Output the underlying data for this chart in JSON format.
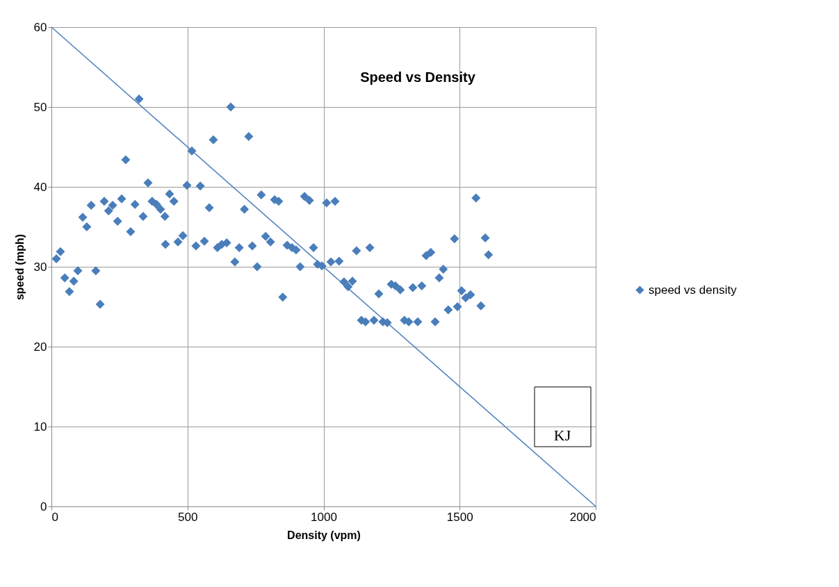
{
  "chart_data": {
    "type": "scatter",
    "title": "Speed vs Density",
    "xlabel": "Density (vpm)",
    "ylabel": "speed (mph)",
    "xlim": [
      0,
      2000
    ],
    "ylim": [
      0,
      60
    ],
    "xticks": [
      0,
      500,
      1000,
      1500,
      2000
    ],
    "yticks": [
      0,
      10,
      20,
      30,
      40,
      50,
      60
    ],
    "grid": true,
    "legend": "right",
    "marker": "diamond",
    "annotations": [
      "KJ"
    ],
    "series": [
      {
        "name": "speed vs density",
        "color": "#4a7ebb",
        "x": [
          18,
          33,
          49,
          66,
          82,
          97,
          115,
          130,
          146,
          163,
          179,
          194,
          210,
          225,
          243,
          258,
          273,
          291,
          307,
          322,
          337,
          355,
          370,
          386,
          401,
          417,
          419,
          434,
          450,
          465,
          483,
          498,
          516,
          531,
          547,
          562,
          580,
          595,
          610,
          626,
          644,
          659,
          674,
          690,
          709,
          725,
          738,
          756,
          771,
          787,
          805,
          820,
          835,
          850,
          866,
          884,
          899,
          914,
          930,
          948,
          963,
          978,
          994,
          1011,
          1027,
          1042,
          1057,
          1075,
          1090,
          1106,
          1121,
          1139,
          1154,
          1170,
          1185,
          1203,
          1218,
          1234,
          1249,
          1264,
          1282,
          1297,
          1313,
          1328,
          1346,
          1361,
          1377,
          1394,
          1410,
          1425,
          1440,
          1458,
          1481,
          1492,
          1507,
          1522,
          1540,
          1560,
          1578,
          1594,
          1606
        ],
        "values": [
          31.0,
          31.9,
          28.6,
          26.9,
          28.2,
          29.5,
          36.2,
          35.0,
          37.7,
          29.5,
          25.3,
          38.2,
          37.0,
          37.7,
          35.7,
          38.5,
          43.4,
          34.4,
          37.8,
          51.0,
          36.3,
          40.5,
          38.2,
          37.8,
          37.2,
          36.3,
          32.8,
          39.1,
          38.2,
          33.1,
          33.9,
          40.2,
          44.5,
          32.6,
          40.1,
          33.2,
          37.4,
          45.9,
          32.4,
          32.8,
          33.0,
          50.0,
          30.6,
          32.4,
          37.2,
          46.3,
          32.6,
          30.0,
          39.0,
          33.8,
          33.1,
          38.4,
          38.2,
          26.2,
          32.7,
          32.4,
          32.1,
          30.0,
          38.8,
          38.3,
          32.4,
          30.3,
          30.1,
          38.0,
          30.6,
          38.2,
          30.7,
          28.1,
          27.5,
          28.2,
          32.0,
          23.3,
          23.1,
          32.4,
          23.3,
          26.6,
          23.1,
          23.0,
          27.8,
          27.6,
          27.1,
          23.3,
          23.1,
          27.4,
          23.1,
          27.6,
          31.4,
          31.8,
          23.1,
          28.6,
          29.7,
          24.6,
          33.5,
          25.0,
          27.0,
          26.1,
          26.5,
          38.6,
          25.1,
          33.6,
          31.5
        ]
      },
      {
        "color": "#4a7ebb",
        "type": "line",
        "marker": "none",
        "x": [
          0,
          2000
        ],
        "values": [
          60,
          0
        ]
      }
    ]
  }
}
